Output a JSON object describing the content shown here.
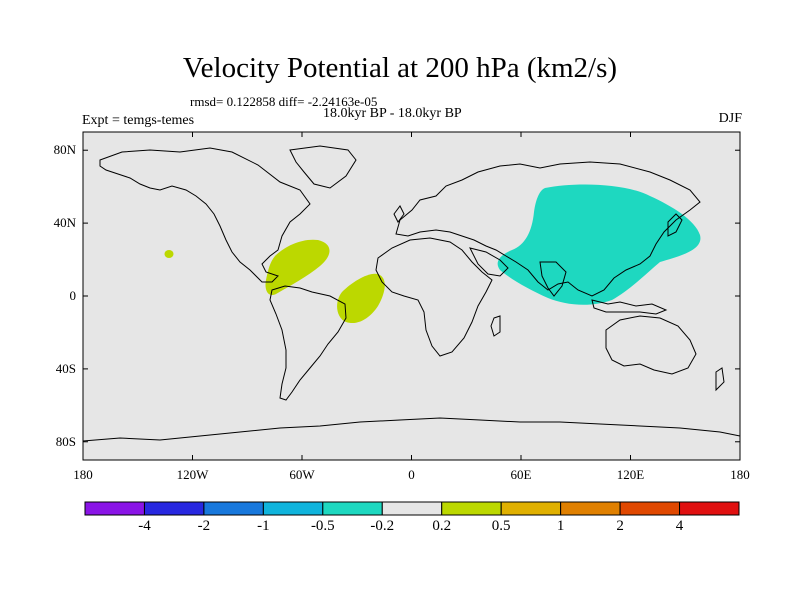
{
  "title": "Velocity Potential at 200 hPa (km2/s)",
  "stats_line": "rmsd= 0.122858 diff= -2.24163e-05",
  "periods": "18.0kyr BP - 18.0kyr BP",
  "experiment": "Expt = temgs-temes",
  "season": "DJF",
  "colors": {
    "ocean_land_bg": "#e6e6e6",
    "coastline": "#000000",
    "positive_anomaly": "#bcd800",
    "negative_anomaly": "#1ed8c0"
  },
  "map": {
    "lon_range": [
      -180,
      180
    ],
    "lat_range": [
      -90,
      90
    ],
    "x_tick_labels": [
      "180",
      "120W",
      "60W",
      "0",
      "60E",
      "120E",
      "180"
    ],
    "y_tick_labels": [
      "80N",
      "40N",
      "0",
      "40S",
      "80S"
    ]
  },
  "colorbar": {
    "colors": [
      "#8a14e6",
      "#2828e0",
      "#1878dc",
      "#10b4dc",
      "#1ed8c0",
      "#e6e6e6",
      "#bcd800",
      "#e0b000",
      "#e08000",
      "#e04800",
      "#e01010"
    ],
    "labels": [
      "-4",
      "-2",
      "-1",
      "-0.5",
      "-0.2",
      "0.2",
      "0.5",
      "1",
      "2",
      "4"
    ]
  }
}
